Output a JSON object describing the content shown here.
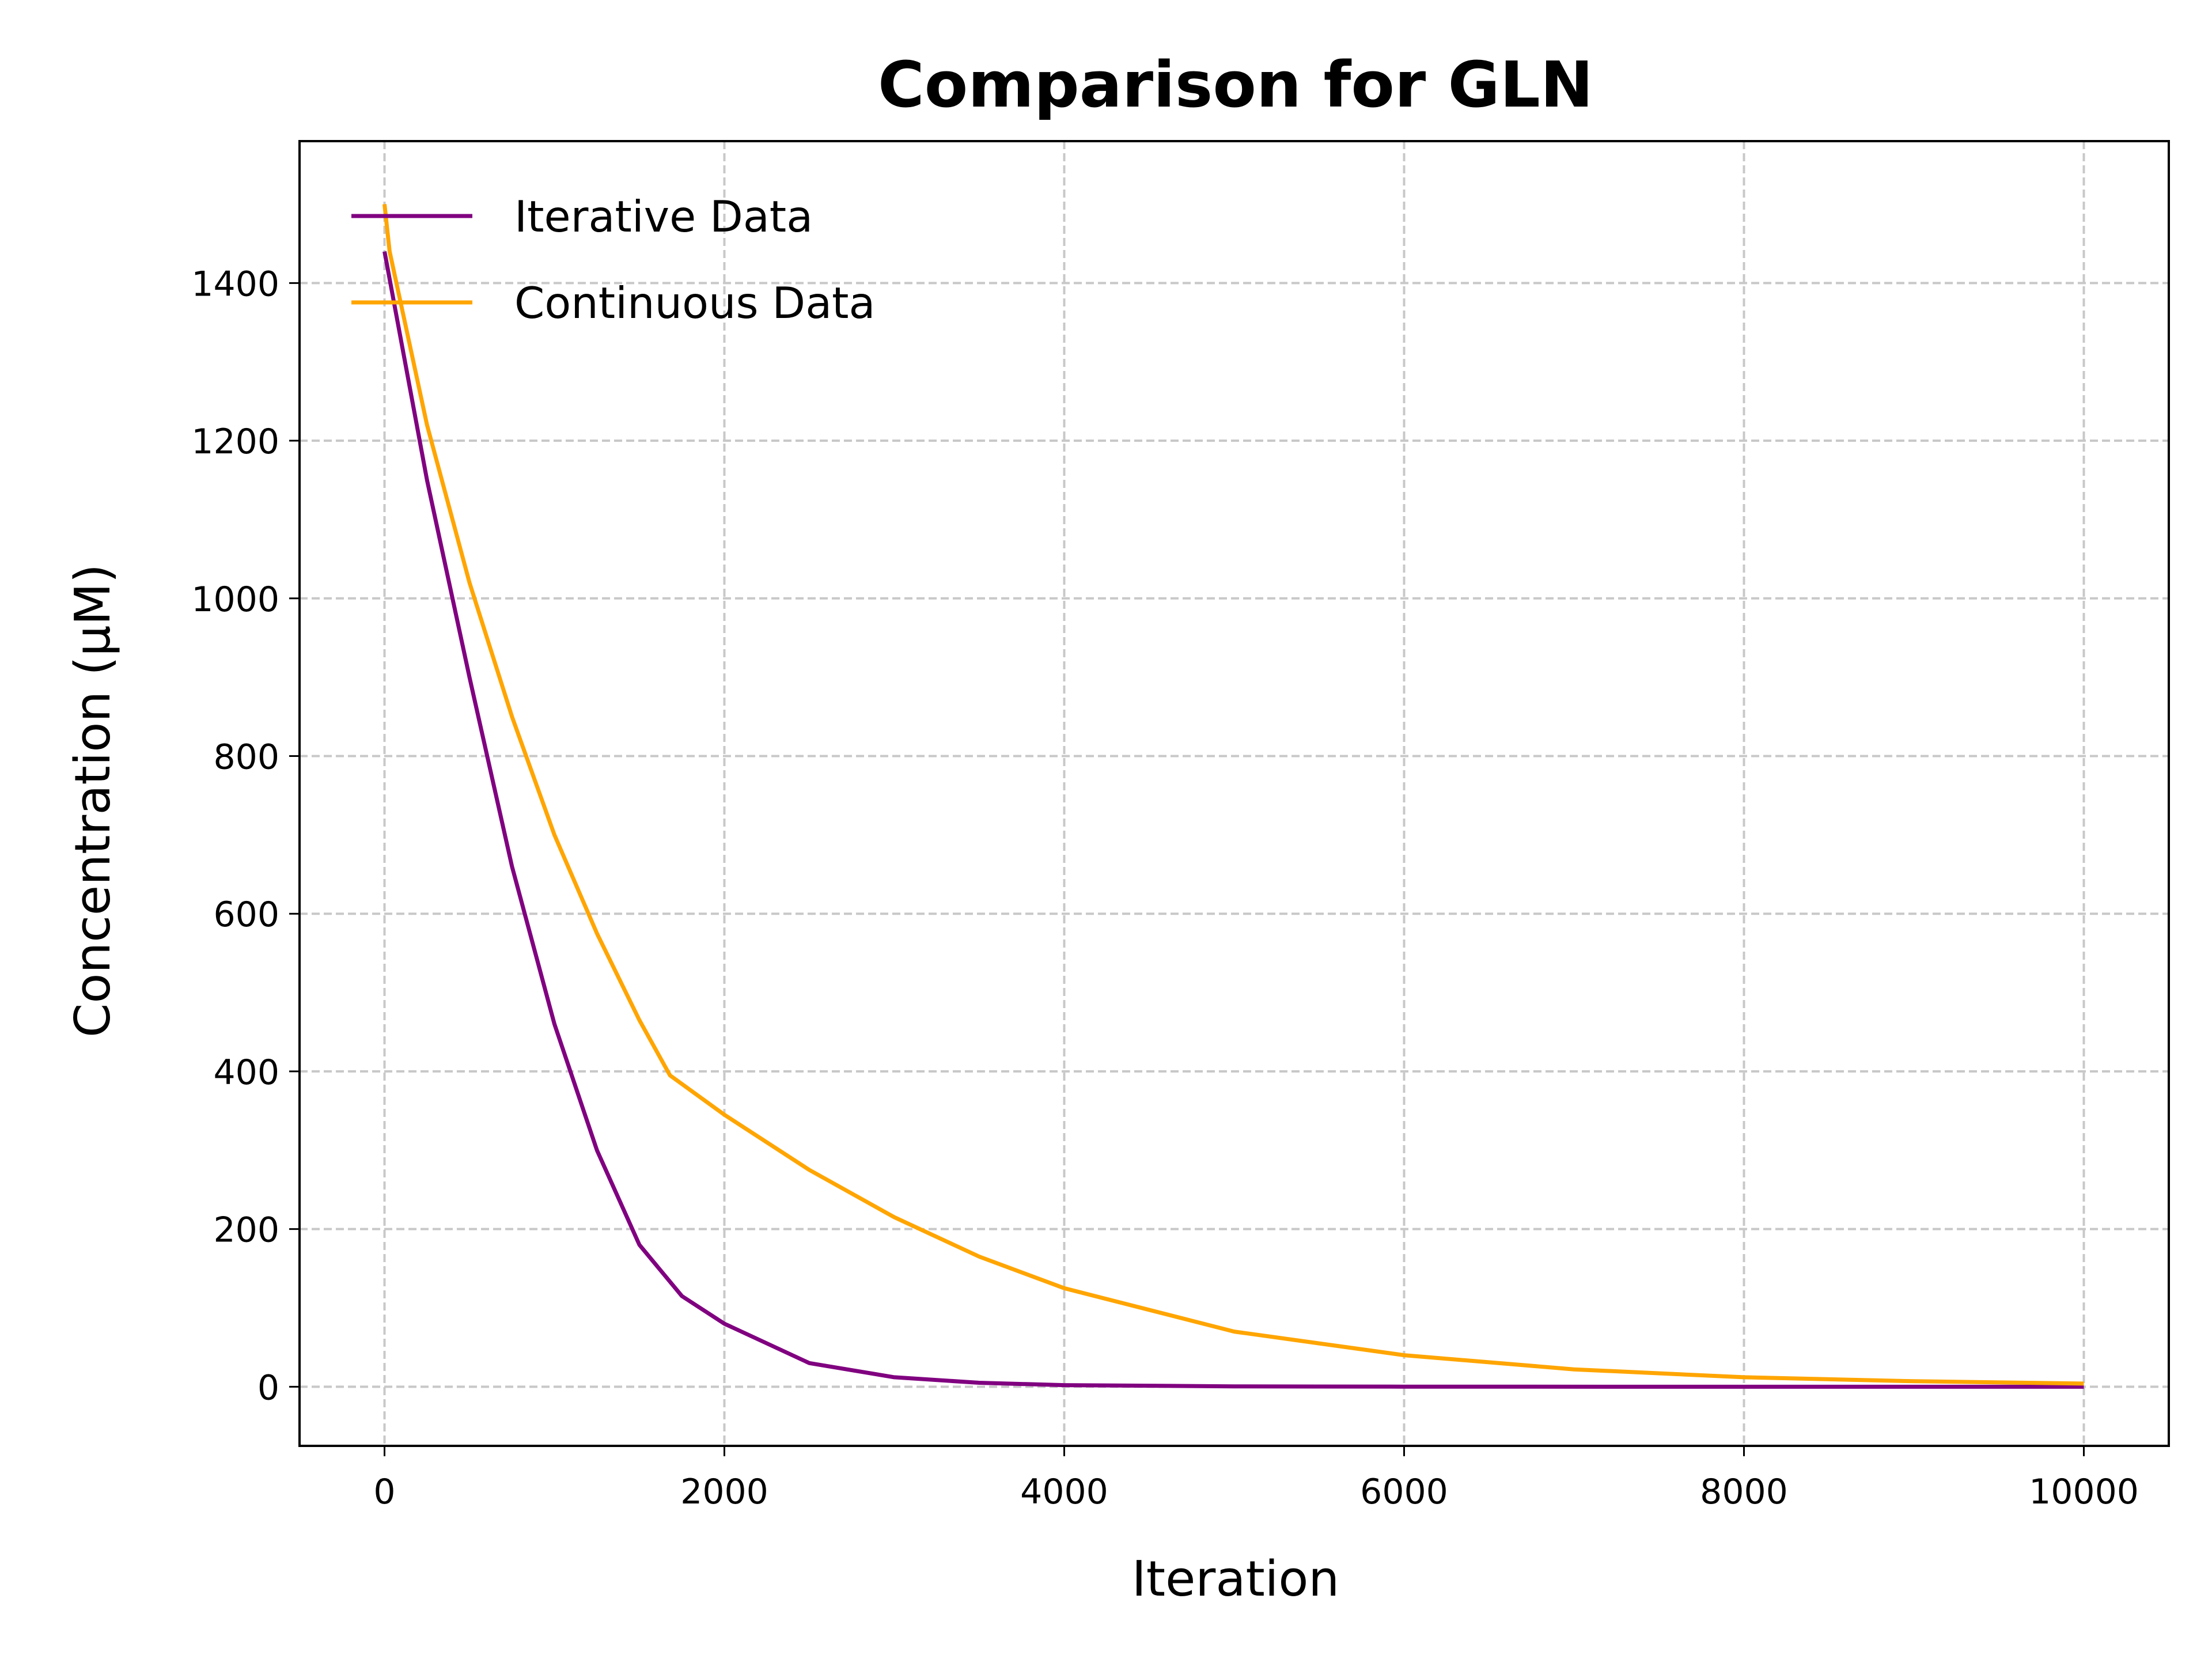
{
  "chart_data": {
    "type": "line",
    "title": "Comparison for GLN",
    "xlabel": "Iteration",
    "ylabel": "Concentration (μM)",
    "xlim": [
      -500,
      10500
    ],
    "ylim": [
      -75,
      1580
    ],
    "xticks": [
      0,
      2000,
      4000,
      6000,
      8000,
      10000
    ],
    "yticks": [
      0,
      200,
      400,
      600,
      800,
      1000,
      1200,
      1400
    ],
    "grid": true,
    "legend_position": "upper-left",
    "series": [
      {
        "name": "Iterative Data",
        "color": "#800080",
        "x": [
          0,
          250,
          500,
          750,
          1000,
          1250,
          1500,
          1750,
          2000,
          2500,
          3000,
          3500,
          4000,
          5000,
          6000,
          8000,
          10000
        ],
        "y": [
          1440,
          1150,
          900,
          660,
          460,
          300,
          180,
          115,
          80,
          30,
          12,
          5,
          2,
          0.5,
          0.1,
          0,
          0
        ]
      },
      {
        "name": "Continuous Data",
        "color": "#FFA500",
        "x": [
          0,
          15,
          30,
          250,
          500,
          750,
          1000,
          1250,
          1500,
          1680,
          2000,
          2500,
          3000,
          3500,
          4000,
          5000,
          6000,
          7000,
          8000,
          9000,
          10000
        ],
        "y": [
          1500,
          1470,
          1440,
          1220,
          1020,
          850,
          700,
          575,
          465,
          395,
          345,
          275,
          215,
          165,
          125,
          70,
          40,
          22,
          12,
          7,
          4
        ]
      }
    ]
  }
}
